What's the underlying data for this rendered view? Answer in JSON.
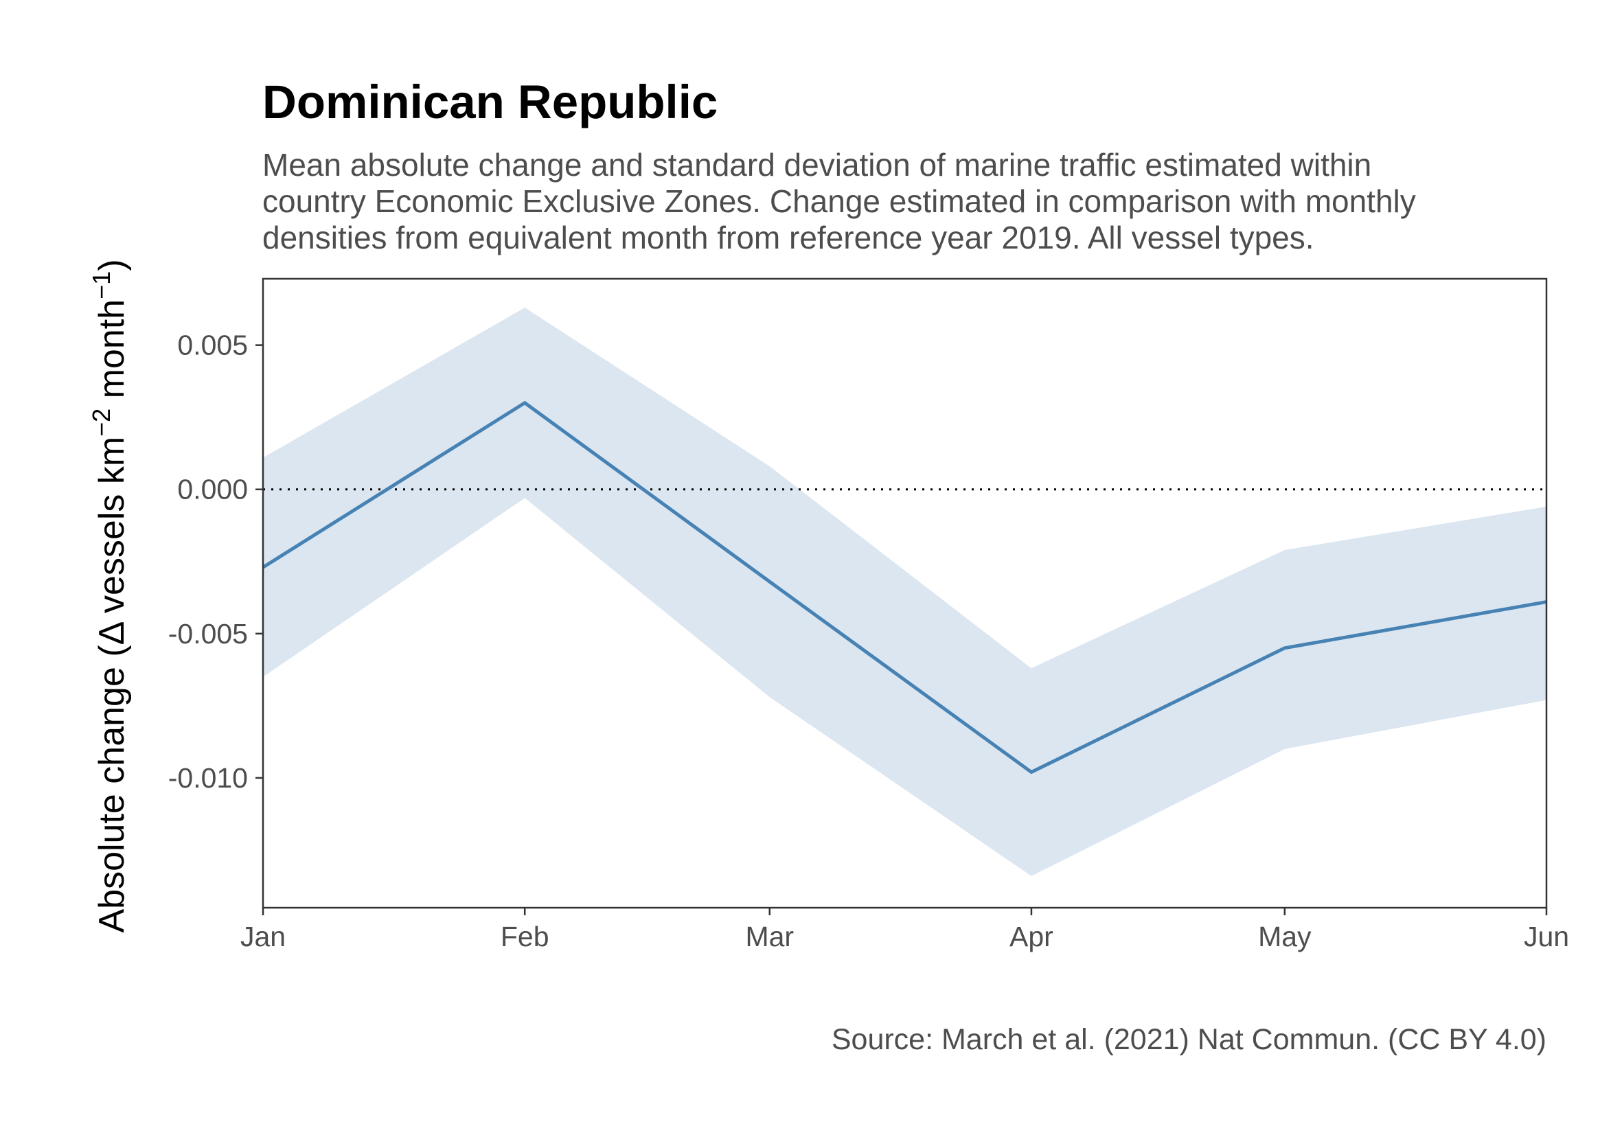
{
  "chart_data": {
    "type": "line",
    "title": "Dominican Republic",
    "subtitle": [
      "Mean absolute change and standard deviation of marine traffic estimated within",
      "country Economic Exclusive Zones. Change estimated in comparison with monthly",
      "densities from equivalent month from reference year 2019. All vessel types."
    ],
    "ylabel": {
      "prefix": "Absolute change (",
      "delta": "Δ",
      "main": " vessels km",
      "exp1": "−2",
      "mid": " month",
      "exp2": "−1",
      "suffix": ")"
    },
    "xlabel": "",
    "caption": "Source: March et al. (2021) Nat Commun. (CC BY 4.0)",
    "categories": [
      "Jan",
      "Feb",
      "Mar",
      "Apr",
      "May",
      "Jun"
    ],
    "x_days": [
      0,
      31,
      60,
      91,
      121,
      152
    ],
    "series": [
      {
        "values": [
          -0.0027,
          0.003,
          -0.0032,
          -0.0098,
          -0.0055,
          -0.0039
        ],
        "sd_lower": [
          -0.0065,
          -0.0003,
          -0.0072,
          -0.0134,
          -0.009,
          -0.0073
        ],
        "sd_upper": [
          0.0011,
          0.0063,
          0.0008,
          -0.0062,
          -0.0021,
          -0.0006
        ]
      }
    ],
    "yticks": [
      0.005,
      0.0,
      -0.005,
      -0.01
    ],
    "ytick_labels": [
      "0.005",
      "0.000",
      "-0.005",
      "-0.010"
    ],
    "ylim": [
      -0.0145,
      0.0073
    ],
    "reference_line": 0,
    "grid": false,
    "colors": {
      "line": "#4682b4",
      "band": "#dce6f0",
      "reference": "#000000",
      "axis": "#333333"
    }
  }
}
